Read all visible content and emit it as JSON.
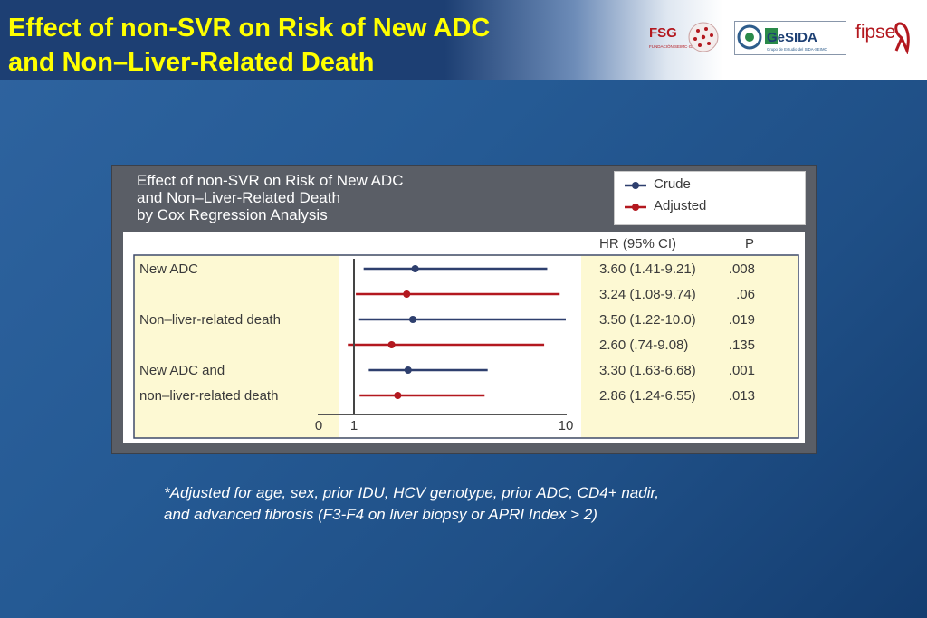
{
  "slide": {
    "title_line1": "Effect of non-SVR on Risk of New ADC",
    "title_line2": "and Non–Liver-Related Death",
    "footnote_line1": "*Adjusted for age, sex, prior IDU, HCV genotype, prior ADC, CD4+ nadir,",
    "footnote_line2": "and advanced fibrosis (F3-F4 on liver biopsy or APRI Index > 2)",
    "logos": {
      "fsg_text": "FSG",
      "fsg_sub": "FUNDACIÓN SEIMC·GESIDA",
      "gesida_text": "GeSIDA",
      "gesida_sub": "Grupo de Estudio del SIDA-SEIMC",
      "fipse_text": "fipse"
    }
  },
  "chart_data": {
    "type": "forest",
    "title_lines": [
      "Effect of non-SVR on Risk of New ADC",
      "and Non–Liver-Related Death",
      "by Cox Regression Analysis"
    ],
    "legend": [
      {
        "name": "Crude",
        "color": "#2e3f6e"
      },
      {
        "name": "Adjusted",
        "color": "#b3181f"
      }
    ],
    "column_headers": {
      "hr": "HR (95% CI)",
      "p": "P"
    },
    "x_ticks": [
      "0",
      "1",
      "10"
    ],
    "x_range": [
      0,
      10
    ],
    "reference_line": 1,
    "rows": [
      {
        "label": "New ADC",
        "series": "Crude",
        "hr": 3.6,
        "lo": 1.41,
        "hi": 9.21,
        "hr_text": "3.60 (1.41-9.21)",
        "p": ".008"
      },
      {
        "label": "",
        "series": "Adjusted",
        "hr": 3.24,
        "lo": 1.08,
        "hi": 9.74,
        "hr_text": "3.24 (1.08-9.74)",
        "p": ".06"
      },
      {
        "label": "Non–liver-related death",
        "series": "Crude",
        "hr": 3.5,
        "lo": 1.22,
        "hi": 10.0,
        "hr_text": "3.50 (1.22-10.0)",
        "p": ".019"
      },
      {
        "label": "",
        "series": "Adjusted",
        "hr": 2.6,
        "lo": 0.74,
        "hi": 9.08,
        "hr_text": "2.60 (.74-9.08)",
        "p": ".135"
      },
      {
        "label": "New ADC and",
        "series": "Crude",
        "hr": 3.3,
        "lo": 1.63,
        "hi": 6.68,
        "hr_text": "3.30 (1.63-6.68)",
        "p": ".001"
      },
      {
        "label": "non–liver-related death",
        "series": "Adjusted",
        "hr": 2.86,
        "lo": 1.24,
        "hi": 6.55,
        "hr_text": "2.86 (1.24-6.55)",
        "p": ".013"
      }
    ]
  }
}
